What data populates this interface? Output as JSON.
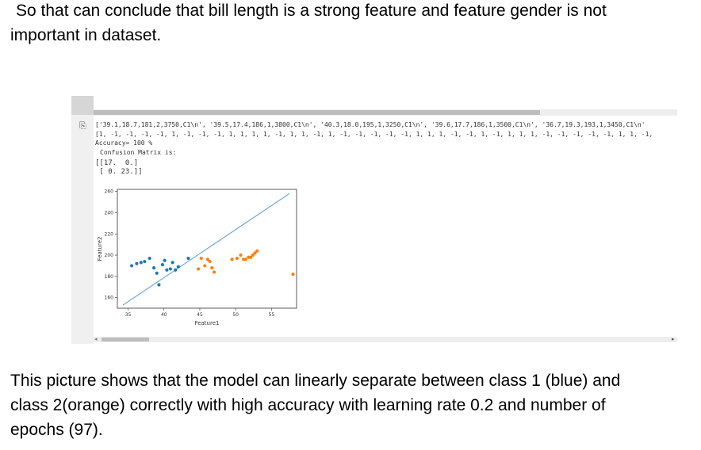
{
  "intro": {
    "line1": "So that can conclude that bill length is a strong feature and feature gender is not",
    "line2": "important in dataset."
  },
  "notebook_output": {
    "data_line": "['39.1,18.7,181,2,3750,C1\\n', '39.5,17.4,186,1,3800,C1\\n', '40.3,18.0,195,1,3250,C1\\n', '39.6,17.7,186,1,3500,C1\\n', '36.7,19.3,193,1,3450,C1\\n'",
    "labels_line": "[1, -1, -1, -1, -1, 1, -1, -1, -1, 1, 1, 1, 1, -1, 1, 1, -1, 1, -1, -1, -1, -1, -1, 1, 1, 1, -1, -1, 1, -1, 1, 1, 1, -1, -1, -1, -1, -1, 1, 1, -1,",
    "accuracy_line": "Accuracy= 100 %",
    "confusion_label": "Confusion Matrix is:",
    "confusion_row1": "[[17.  0.]",
    "confusion_row2": " [ 0. 23.]]",
    "output_icon": "output-arrow-icon"
  },
  "chart_data": {
    "type": "scatter",
    "title": "",
    "xlabel": "Feature1",
    "ylabel": "Feature2",
    "xlim": [
      33.5,
      58.5
    ],
    "ylim": [
      150,
      262
    ],
    "xticks": [
      35,
      40,
      45,
      50,
      55
    ],
    "yticks": [
      160,
      180,
      200,
      220,
      240,
      260
    ],
    "grid": false,
    "series": [
      {
        "color": "#1f77b4",
        "points": [
          [
            35.5,
            190
          ],
          [
            36.2,
            192
          ],
          [
            36.8,
            193
          ],
          [
            37.3,
            194
          ],
          [
            38.0,
            197
          ],
          [
            38.6,
            188
          ],
          [
            39.0,
            183
          ],
          [
            39.3,
            172
          ],
          [
            39.8,
            191
          ],
          [
            40.1,
            195
          ],
          [
            40.4,
            186
          ],
          [
            40.9,
            187
          ],
          [
            41.2,
            193
          ],
          [
            41.6,
            186
          ],
          [
            42.0,
            189
          ],
          [
            43.4,
            197
          ]
        ]
      },
      {
        "color": "#ff7f0e",
        "points": [
          [
            44.8,
            187
          ],
          [
            45.2,
            197
          ],
          [
            45.7,
            190
          ],
          [
            46.1,
            196
          ],
          [
            46.4,
            194
          ],
          [
            46.7,
            188
          ],
          [
            47.0,
            184
          ],
          [
            49.5,
            196
          ],
          [
            50.2,
            197
          ],
          [
            50.7,
            200
          ],
          [
            51.1,
            196
          ],
          [
            51.4,
            196
          ],
          [
            51.8,
            198
          ],
          [
            52.1,
            198
          ],
          [
            52.4,
            200
          ],
          [
            52.7,
            202
          ],
          [
            53.0,
            204
          ],
          [
            58.0,
            182
          ]
        ]
      }
    ],
    "decision_line": {
      "color": "#6fa8dc",
      "points": [
        [
          34.3,
          153
        ],
        [
          57.5,
          258
        ]
      ]
    }
  },
  "conclusion": {
    "line1": "This picture shows that the model can linearly separate between class 1 (blue) and",
    "line2": "class 2(orange) correctly with high accuracy with learning rate 0.2 and number of",
    "line3": "epochs (97)."
  }
}
